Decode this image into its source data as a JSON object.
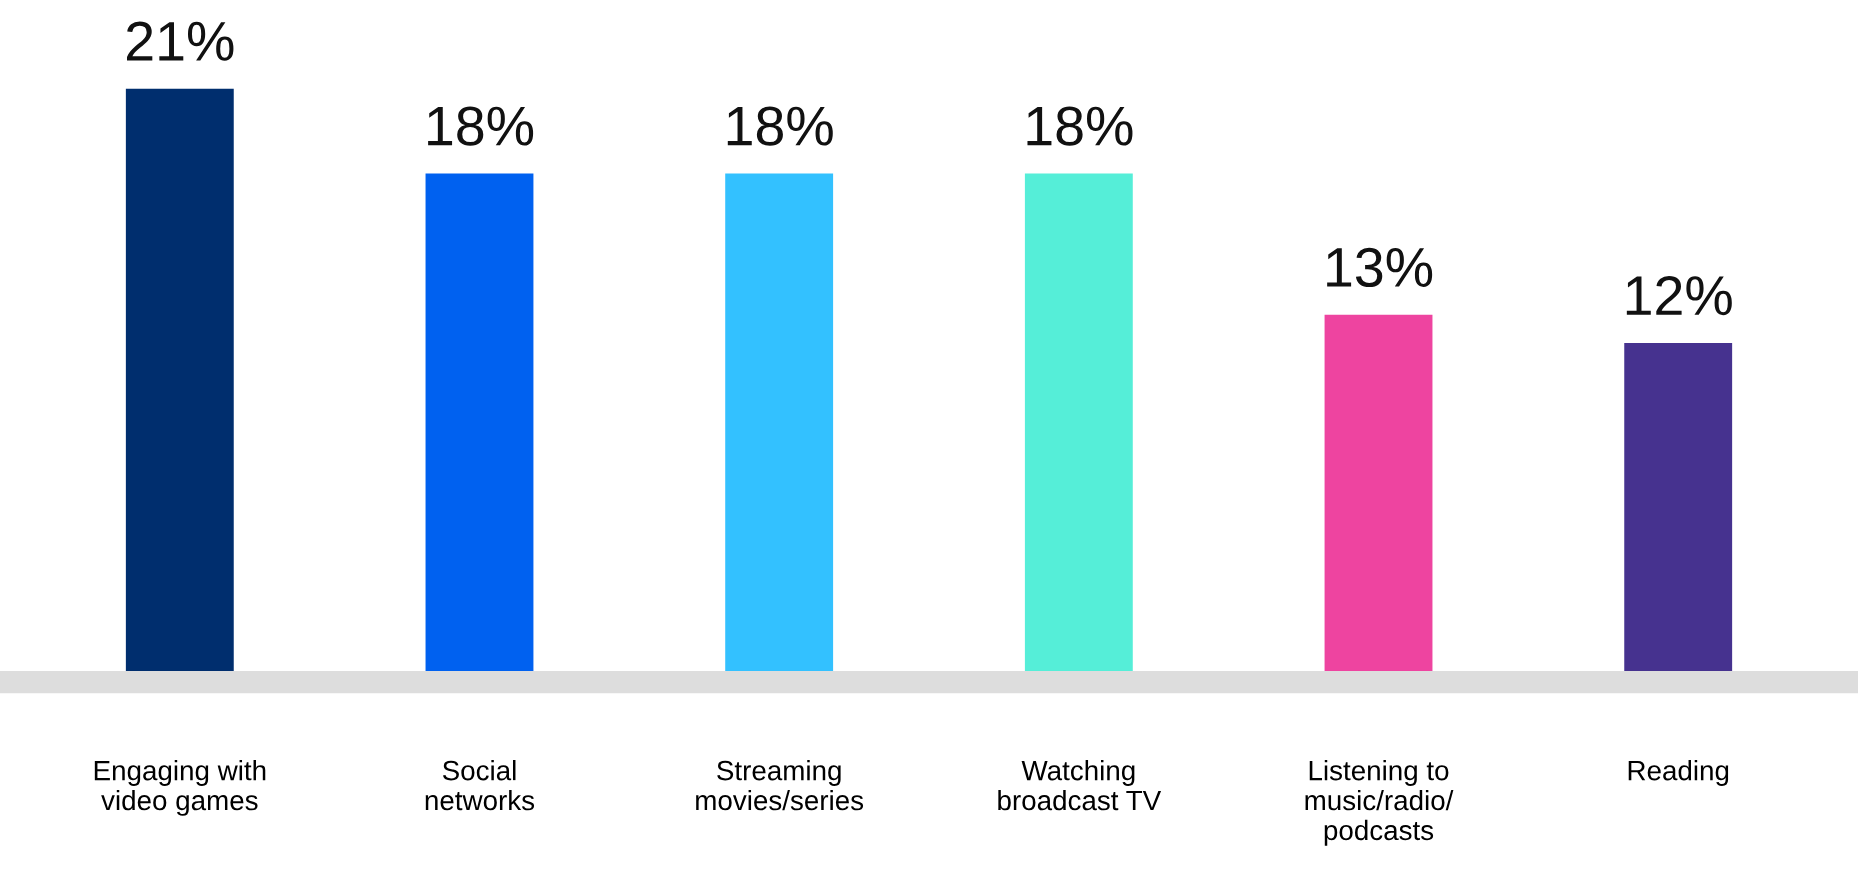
{
  "chart_data": {
    "type": "bar",
    "categories": [
      "Engaging with\nvideo games",
      "Social\nnetworks",
      "Streaming\nmovies/series",
      "Watching\nbroadcast TV",
      "Listening to\nmusic/radio/\npodcasts",
      "Reading"
    ],
    "values": [
      21,
      18,
      18,
      18,
      13,
      12
    ],
    "colors": [
      "#002e6e",
      "#0061f0",
      "#33c1ff",
      "#55eed8",
      "#ee44a0",
      "#46328f"
    ],
    "value_labels": [
      "21%",
      "18%",
      "18%",
      "18%",
      "13%",
      "12%"
    ],
    "grid": false,
    "legend": false
  }
}
